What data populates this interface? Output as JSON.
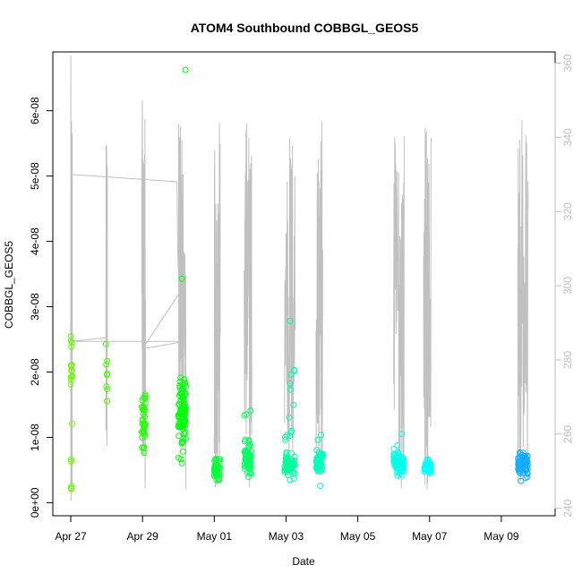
{
  "chart_data": {
    "type": "scatter",
    "title": "ATOM4 Southbound COBBGL_GEOS5",
    "xlabel": "Date",
    "ylabel": "COBBGL_GEOS5",
    "xlim": [
      "2018-04-26T12:00",
      "2018-05-10T12:00"
    ],
    "ylim": [
      -2e-09,
      6.9e-08
    ],
    "y_ticks": [
      0,
      1e-08,
      2e-08,
      3e-08,
      4e-08,
      5e-08,
      6e-08
    ],
    "y_tick_labels": [
      "0e+00",
      "1e-08",
      "2e-08",
      "3e-08",
      "4e-08",
      "5e-08",
      "6e-08"
    ],
    "x_ticks": [
      "2018-04-27",
      "2018-04-29",
      "2018-05-01",
      "2018-05-03",
      "2018-05-05",
      "2018-05-07",
      "2018-05-09"
    ],
    "x_tick_labels": [
      "Apr 27",
      "Apr 29",
      "May 01",
      "May 03",
      "May 05",
      "May 07",
      "May 09"
    ],
    "y2_ticks": [
      240,
      260,
      280,
      300,
      320,
      340,
      360
    ],
    "y2_tick_labels": [
      "240",
      "260",
      "280",
      "300",
      "320",
      "340",
      "360"
    ],
    "y2lim": [
      238,
      363
    ],
    "grid": false,
    "legend": "none",
    "marker": "open circle",
    "color_gradient": [
      "#7cfc00",
      "#00ff00",
      "#00ffb0",
      "#00ffff",
      "#1e90ff"
    ],
    "line_color": "#c0c0c0",
    "flights": [
      {
        "start": "2018-04-27T00:00",
        "end": "2018-04-27T01:00",
        "groups": [
          {
            "y": 2.1e-08,
            "sd": 2e-09,
            "n": 14
          },
          {
            "y": 6e-09,
            "sd": 5e-10,
            "n": 2
          },
          {
            "y": 2.3e-09,
            "sd": 3e-10,
            "n": 4
          },
          {
            "y": 1.2e-08,
            "sd": 1e-10,
            "n": 1
          },
          {
            "y": 2.48e-08,
            "sd": 1e-10,
            "n": 1
          }
        ]
      },
      {
        "start": "2018-04-27T23:30",
        "end": "2018-04-28T00:30",
        "groups": [
          {
            "y": 1.95e-08,
            "sd": 2e-09,
            "n": 6
          },
          {
            "y": 1.55e-08,
            "sd": 1e-10,
            "n": 1
          },
          {
            "y": 2.42e-08,
            "sd": 1e-10,
            "n": 1
          }
        ]
      },
      {
        "start": "2018-04-28T23:30",
        "end": "2018-04-29T02:00",
        "groups": [
          {
            "y": 1.3e-08,
            "sd": 2.5e-09,
            "n": 30
          },
          {
            "y": 8.5e-09,
            "sd": 4e-10,
            "n": 3
          }
        ]
      },
      {
        "start": "2018-04-30T00:00",
        "end": "2018-04-30T05:00",
        "groups": [
          {
            "y": 1.4e-08,
            "sd": 3e-09,
            "n": 85
          },
          {
            "y": 6.62e-08,
            "sd": 1e-10,
            "n": 1
          },
          {
            "y": 3.45e-08,
            "sd": 1e-10,
            "n": 1
          },
          {
            "y": 6.3e-09,
            "sd": 5e-10,
            "n": 2
          }
        ]
      },
      {
        "start": "2018-05-01T00:00",
        "end": "2018-05-01T04:00",
        "groups": [
          {
            "y": 5e-09,
            "sd": 7e-10,
            "n": 45
          }
        ]
      },
      {
        "start": "2018-05-01T20:00",
        "end": "2018-05-02T01:00",
        "groups": [
          {
            "y": 6.5e-09,
            "sd": 1.2e-09,
            "n": 60
          },
          {
            "y": 1.35e-08,
            "sd": 5e-10,
            "n": 3
          }
        ]
      },
      {
        "start": "2018-05-02T23:00",
        "end": "2018-05-03T06:00",
        "groups": [
          {
            "y": 6e-09,
            "sd": 8e-10,
            "n": 60
          },
          {
            "y": 1.3e-08,
            "sd": 3e-09,
            "n": 12
          },
          {
            "y": 2.03e-08,
            "sd": 2e-10,
            "n": 2
          },
          {
            "y": 2.8e-08,
            "sd": 1e-10,
            "n": 1
          }
        ]
      },
      {
        "start": "2018-05-03T20:00",
        "end": "2018-05-04T00:30",
        "groups": [
          {
            "y": 6.2e-09,
            "sd": 1e-09,
            "n": 50
          },
          {
            "y": 9.7e-09,
            "sd": 3e-10,
            "n": 2
          }
        ]
      },
      {
        "start": "2018-05-06T00:00",
        "end": "2018-05-06T07:00",
        "groups": [
          {
            "y": 6e-09,
            "sd": 8e-10,
            "n": 70
          },
          {
            "y": 1.05e-08,
            "sd": 1e-10,
            "n": 1
          }
        ]
      },
      {
        "start": "2018-05-06T20:00",
        "end": "2018-05-07T01:00",
        "groups": [
          {
            "y": 5.5e-09,
            "sd": 6e-10,
            "n": 40
          }
        ]
      },
      {
        "start": "2018-05-09T11:00",
        "end": "2018-05-09T18:00",
        "groups": [
          {
            "y": 6e-09,
            "sd": 8e-10,
            "n": 80
          },
          {
            "y": 4e-09,
            "sd": 5e-10,
            "n": 4
          }
        ]
      }
    ],
    "alt_line": [
      [
        "2018-04-26T23:50",
        285
      ],
      [
        "2018-04-26T23:55",
        290
      ],
      [
        "2018-04-27T00:00",
        280
      ],
      [
        "2018-04-27T00:03",
        362
      ],
      [
        "2018-04-27T00:06",
        330
      ],
      [
        "2018-04-27T00:10",
        242
      ],
      [
        "2018-04-27T00:15",
        330
      ],
      [
        "2018-04-29T23:00",
        328
      ],
      [
        "2018-04-29T23:20",
        320
      ],
      [
        "2018-04-29T23:30",
        310
      ],
      [
        "2018-04-30T00:00",
        304
      ],
      [
        "2018-04-30T00:20",
        320
      ],
      [
        "2018-04-30T00:40",
        340
      ],
      [
        "2018-04-30T01:00",
        310
      ],
      [
        "2018-04-30T01:20",
        330
      ],
      [
        "2018-04-30T01:40",
        255
      ],
      [
        "2018-04-30T02:00",
        330
      ],
      [
        "2018-04-30T02:30",
        300
      ],
      [
        "2018-04-30T03:00",
        325
      ],
      [
        "2018-04-30T03:30",
        283
      ],
      [
        "2018-04-30T04:00",
        300
      ],
      [
        "2018-04-29T00:00",
        283
      ],
      [
        "2018-04-28T23:40",
        330
      ],
      [
        "2018-04-28T23:55",
        350
      ],
      [
        "2018-04-29T00:10",
        283
      ],
      [
        "2018-04-30T04:30",
        285
      ],
      [
        "2018-04-27T00:00",
        285
      ],
      [
        "2018-04-28T00:00",
        286
      ],
      [
        "2018-04-28T00:05",
        284
      ]
    ]
  }
}
